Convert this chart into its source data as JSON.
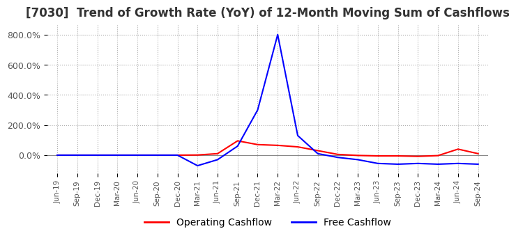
{
  "title": "[7030]  Trend of Growth Rate (YoY) of 12-Month Moving Sum of Cashflows",
  "title_fontsize": 12,
  "background_color": "#ffffff",
  "grid_color": "#aaaaaa",
  "operating_color": "#ff0000",
  "free_color": "#0000ff",
  "legend_labels": [
    "Operating Cashflow",
    "Free Cashflow"
  ],
  "ylim": [
    -120,
    870
  ],
  "yticks": [
    0,
    200,
    400,
    600,
    800
  ],
  "ytick_labels": [
    "0.0%",
    "200.0%",
    "400.0%",
    "600.0%",
    "800.0%"
  ],
  "dates": [
    "Jun-19",
    "Sep-19",
    "Dec-19",
    "Mar-20",
    "Jun-20",
    "Sep-20",
    "Dec-20",
    "Mar-21",
    "Jun-21",
    "Sep-21",
    "Dec-21",
    "Mar-22",
    "Jun-22",
    "Sep-22",
    "Dec-22",
    "Mar-23",
    "Jun-23",
    "Sep-23",
    "Dec-23",
    "Mar-24",
    "Jun-24",
    "Sep-24"
  ],
  "operating_cashflow": [
    0.0,
    0.0,
    0.0,
    0.0,
    0.0,
    0.0,
    0.0,
    1.0,
    10.0,
    95.0,
    70.0,
    65.0,
    55.0,
    30.0,
    5.0,
    -2.0,
    -5.0,
    -5.0,
    -8.0,
    -3.0,
    40.0,
    10.0
  ],
  "free_cashflow": [
    0.0,
    0.0,
    0.0,
    0.0,
    0.0,
    0.0,
    0.0,
    -70.0,
    -30.0,
    60.0,
    300.0,
    800.0,
    130.0,
    10.0,
    -15.0,
    -30.0,
    -55.0,
    -60.0,
    -55.0,
    -60.0,
    -55.0,
    -60.0
  ]
}
